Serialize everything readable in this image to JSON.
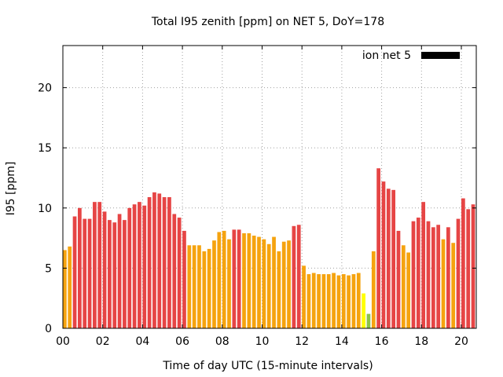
{
  "chart_data": {
    "type": "bar",
    "title": "Total I95 zenith [ppm] on NET 5, DoY=178",
    "xlabel": "Time of day UTC (15-minute intervals)",
    "ylabel": "I95 [ppm]",
    "xlim": [
      0,
      20.75
    ],
    "ylim": [
      0,
      23.5
    ],
    "x_ticks": [
      0,
      2,
      4,
      6,
      8,
      10,
      12,
      14,
      16,
      18,
      20
    ],
    "x_tick_labels": [
      "00",
      "02",
      "04",
      "06",
      "08",
      "10",
      "12",
      "14",
      "16",
      "18",
      "20"
    ],
    "y_ticks": [
      0,
      5,
      10,
      15,
      20
    ],
    "y_tick_labels": [
      "0",
      "5",
      "10",
      "15",
      "20"
    ],
    "grid": true,
    "legend": {
      "label": "ion net 5",
      "color": "#000000",
      "placement": "top-right"
    },
    "interval_hours": 0.25,
    "colors": {
      "red": "#e64545",
      "orange": "#f5a30f",
      "yellow": "#ffff00",
      "green": "#8bc34a"
    },
    "values": [
      6.5,
      6.8,
      9.3,
      10.0,
      9.1,
      9.1,
      10.5,
      10.5,
      9.7,
      9.0,
      8.8,
      9.5,
      9.0,
      10.0,
      10.3,
      10.5,
      10.2,
      10.9,
      11.3,
      11.2,
      10.9,
      10.9,
      9.5,
      9.2,
      8.1,
      6.9,
      6.9,
      6.9,
      6.4,
      6.6,
      7.3,
      8.0,
      8.1,
      7.4,
      8.2,
      8.2,
      7.9,
      7.9,
      7.7,
      7.6,
      7.4,
      7.0,
      7.6,
      6.4,
      7.2,
      7.3,
      8.5,
      8.6,
      5.2,
      4.5,
      4.6,
      4.5,
      4.5,
      4.5,
      4.6,
      4.4,
      4.5,
      4.4,
      4.5,
      4.6,
      2.9,
      1.2,
      6.4,
      13.3,
      12.2,
      11.6,
      11.5,
      8.1,
      6.9,
      6.3,
      8.9,
      9.2,
      10.5,
      8.9,
      8.4,
      8.6,
      7.4,
      8.4,
      7.1,
      9.1,
      10.8,
      9.9,
      10.3
    ],
    "bar_colors": [
      "orange",
      "orange",
      "red",
      "red",
      "red",
      "red",
      "red",
      "red",
      "red",
      "red",
      "red",
      "red",
      "red",
      "red",
      "red",
      "red",
      "red",
      "red",
      "red",
      "red",
      "red",
      "red",
      "red",
      "red",
      "red",
      "orange",
      "orange",
      "orange",
      "orange",
      "orange",
      "orange",
      "orange",
      "orange",
      "orange",
      "red",
      "red",
      "orange",
      "orange",
      "orange",
      "orange",
      "orange",
      "orange",
      "orange",
      "orange",
      "orange",
      "orange",
      "red",
      "red",
      "orange",
      "orange",
      "orange",
      "orange",
      "orange",
      "orange",
      "orange",
      "orange",
      "orange",
      "orange",
      "orange",
      "orange",
      "yellow",
      "green",
      "orange",
      "red",
      "red",
      "red",
      "red",
      "red",
      "orange",
      "orange",
      "red",
      "red",
      "red",
      "red",
      "red",
      "red",
      "orange",
      "red",
      "orange",
      "red",
      "red",
      "red",
      "red"
    ]
  }
}
